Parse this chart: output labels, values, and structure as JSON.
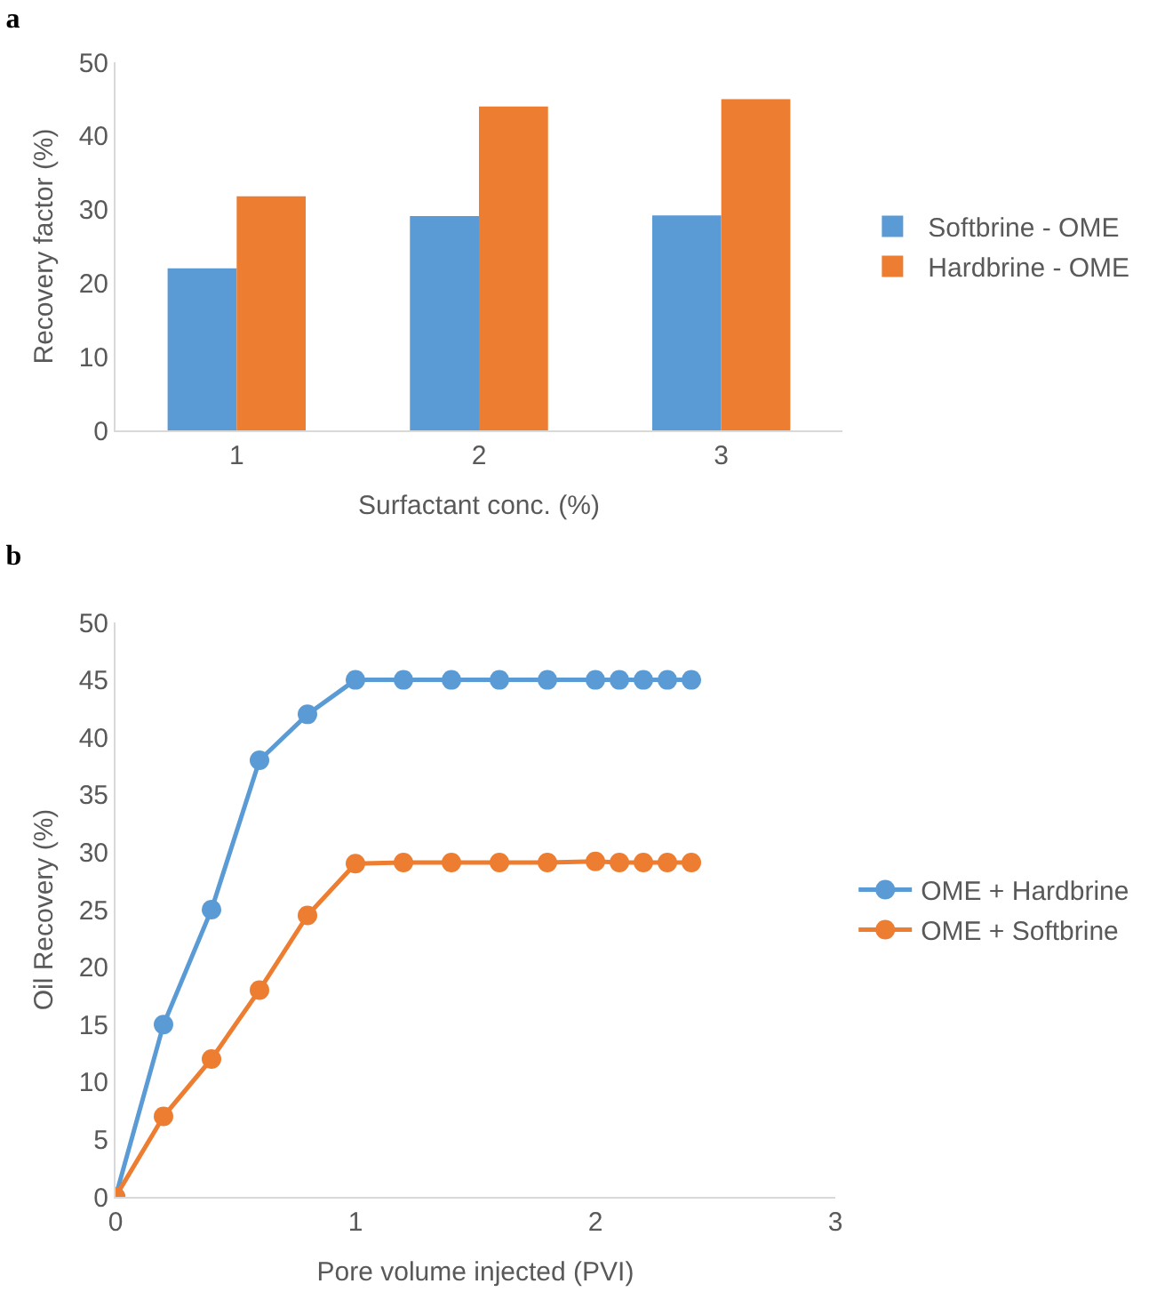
{
  "chart_data": [
    {
      "type": "bar",
      "title": "a",
      "categories": [
        "1",
        "2",
        "3"
      ],
      "xlabel": "Surfactant conc. (%)",
      "ylabel": "Recovery factor (%)",
      "ylim": [
        0,
        50
      ],
      "yticks": [
        0,
        10,
        20,
        30,
        40,
        50
      ],
      "grid": false,
      "legend": "right",
      "series": [
        {
          "name": "Softbrine - OME",
          "color": "#5b9bd5",
          "values": [
            22,
            29.1,
            29.2
          ]
        },
        {
          "name": "Hardbrine - OME",
          "color": "#ed7d31",
          "values": [
            31.8,
            44,
            45
          ]
        }
      ]
    },
    {
      "type": "line",
      "title": "b",
      "xlabel": "Pore volume injected (PVI)",
      "ylabel": "Oil Recovery (%)",
      "xlim": [
        0,
        3
      ],
      "xticks": [
        0,
        1,
        2,
        3
      ],
      "ylim": [
        0,
        50
      ],
      "yticks": [
        0,
        5,
        10,
        15,
        20,
        25,
        30,
        35,
        40,
        45,
        50
      ],
      "grid": false,
      "legend": "right",
      "marker": "circle",
      "line_style": "solid",
      "series": [
        {
          "name": "OME + Hardbrine",
          "color": "#5b9bd5",
          "x": [
            0,
            0.2,
            0.4,
            0.6,
            0.8,
            1,
            1.2,
            1.4,
            1.6,
            1.8,
            2,
            2.1,
            2.2,
            2.3,
            2.4
          ],
          "values": [
            0,
            15,
            25,
            38,
            42,
            45,
            45,
            45,
            45,
            45,
            45,
            45,
            45,
            45,
            45
          ]
        },
        {
          "name": "OME + Softbrine",
          "color": "#ed7d31",
          "x": [
            0,
            0.2,
            0.4,
            0.6,
            0.8,
            1,
            1.2,
            1.4,
            1.6,
            1.8,
            2,
            2.1,
            2.2,
            2.3,
            2.4
          ],
          "values": [
            0,
            7,
            12,
            18,
            24.5,
            29,
            29.1,
            29.1,
            29.1,
            29.1,
            29.2,
            29.1,
            29.1,
            29.1,
            29.1
          ]
        }
      ]
    }
  ]
}
